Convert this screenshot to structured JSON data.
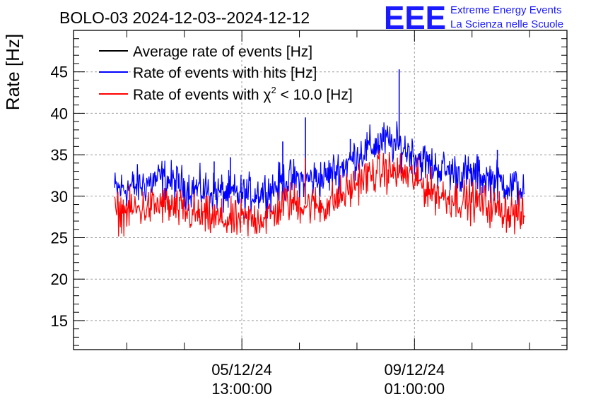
{
  "logo": {
    "mark": "EEE",
    "line1": "Extreme Energy Events",
    "line2": "La Scienza nelle Scuole"
  },
  "colors": {
    "black": "#000000",
    "blue": "#0000ff",
    "red": "#ff0000",
    "logo": "#1a1aff"
  },
  "chart_data": {
    "type": "line",
    "title": "BOLO-03 2024-12-03--2024-12-12",
    "ylabel": "Rate [Hz]",
    "xlabel": "",
    "ylim": [
      11.5,
      50
    ],
    "xlim": [
      0,
      1
    ],
    "yticks": [
      15,
      20,
      25,
      30,
      35,
      40,
      45
    ],
    "xticks": [
      {
        "pos": 0.341,
        "date": "05/12/24",
        "time": "13:00:00"
      },
      {
        "pos": 0.691,
        "date": "09/12/24",
        "time": "01:00:00"
      }
    ],
    "grid": true,
    "legend": "top-left",
    "legend_entries": [
      {
        "label": "Average rate of events [Hz]",
        "color": "#000000"
      },
      {
        "label": "Rate of events with hits [Hz]",
        "color": "#0000ff"
      },
      {
        "label_prefix": "Rate of events with ",
        "label_symbol": "χ",
        "label_sup": "2",
        "label_suffix": " < 10.0 [Hz]",
        "color": "#ff0000"
      }
    ],
    "series": [
      {
        "name": "Rate of events with hits [Hz]",
        "color": "#0000ff",
        "noise": 2.4,
        "x": [
          0.083,
          0.13,
          0.18,
          0.23,
          0.27,
          0.32,
          0.35,
          0.4,
          0.43,
          0.47,
          0.51,
          0.55,
          0.58,
          0.63,
          0.68,
          0.72,
          0.76,
          0.81,
          0.85,
          0.91,
          0.914
        ],
        "values": [
          30.8,
          31.2,
          32.2,
          31.0,
          30.7,
          30.2,
          30.2,
          30.8,
          32.0,
          32.0,
          32.3,
          33.8,
          35.2,
          36.7,
          35.5,
          33.8,
          33.0,
          32.5,
          32.0,
          30.8,
          30.6
        ],
        "spikes": [
          {
            "x": 0.285,
            "y": 34.2
          },
          {
            "x": 0.318,
            "y": 34.7
          },
          {
            "x": 0.424,
            "y": 36.6
          },
          {
            "x": 0.47,
            "y": 39.5
          },
          {
            "x": 0.561,
            "y": 36.9
          },
          {
            "x": 0.66,
            "y": 45.3
          },
          {
            "x": 0.82,
            "y": 34.8
          },
          {
            "x": 0.859,
            "y": 35.6
          }
        ]
      },
      {
        "name": "Rate of events with χ2 < 10.0 [Hz]",
        "color": "#ff0000",
        "noise": 2.4,
        "x": [
          0.083,
          0.13,
          0.18,
          0.23,
          0.27,
          0.32,
          0.35,
          0.4,
          0.43,
          0.47,
          0.51,
          0.55,
          0.58,
          0.63,
          0.68,
          0.72,
          0.76,
          0.81,
          0.85,
          0.91,
          0.914
        ],
        "values": [
          28.0,
          28.4,
          29.0,
          28.0,
          27.4,
          27.0,
          27.1,
          27.6,
          29.3,
          29.0,
          28.8,
          30.3,
          32.0,
          33.1,
          32.5,
          30.8,
          29.8,
          29.4,
          28.7,
          27.6,
          27.4
        ],
        "spikes": [
          {
            "x": 0.47,
            "y": 34.6
          },
          {
            "x": 0.66,
            "y": 33.8
          }
        ]
      }
    ]
  }
}
